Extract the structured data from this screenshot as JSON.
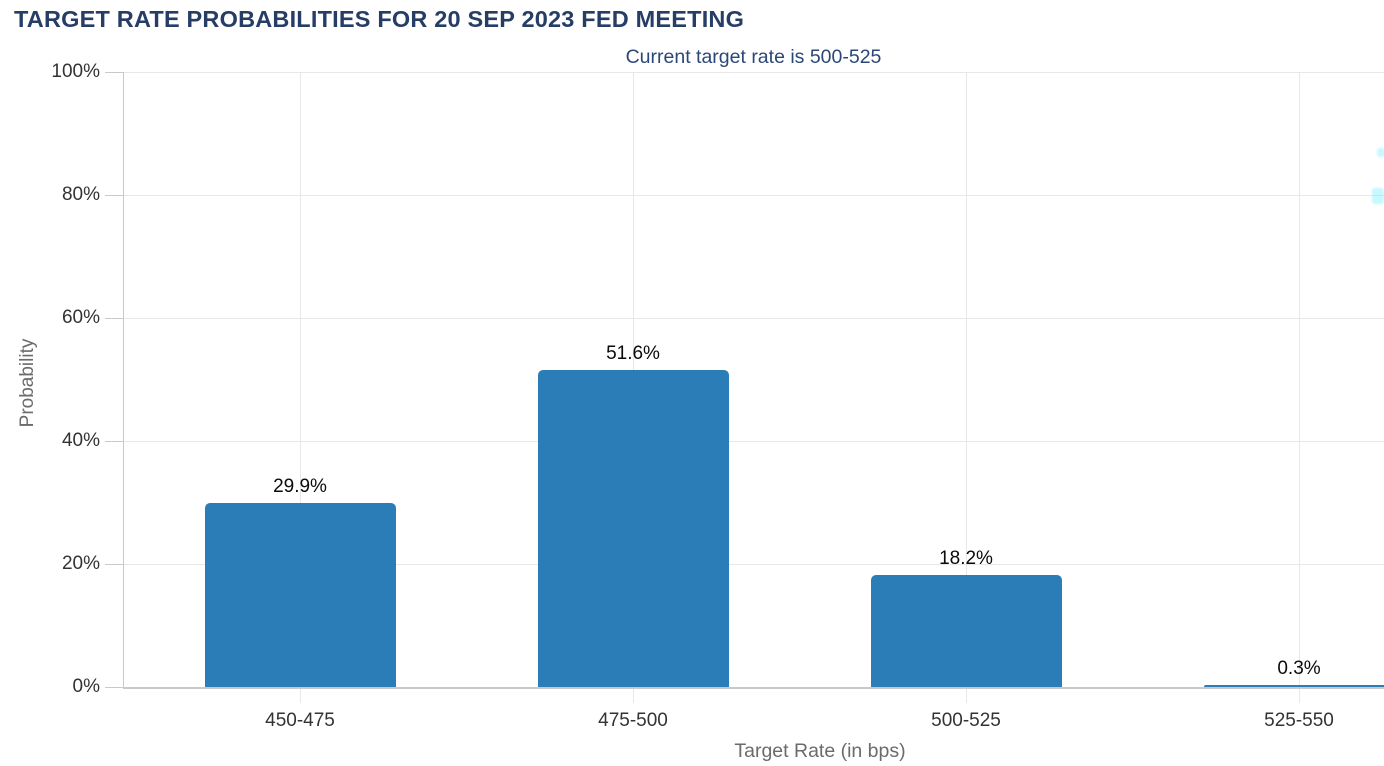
{
  "chart_data": {
    "type": "bar",
    "title": "TARGET RATE PROBABILITIES FOR 20 SEP 2023 FED MEETING",
    "subtitle": "Current target rate is 500-525",
    "xlabel": "Target Rate (in bps)",
    "ylabel": "Probability",
    "categories": [
      "450-475",
      "475-500",
      "500-525",
      "525-550"
    ],
    "values": [
      29.9,
      51.6,
      18.2,
      0.3
    ],
    "value_labels": [
      "29.9%",
      "51.6%",
      "18.2%",
      "0.3%"
    ],
    "yticks": [
      "0%",
      "20%",
      "40%",
      "60%",
      "80%",
      "100%"
    ],
    "ytick_values": [
      0,
      20,
      40,
      60,
      80,
      100
    ],
    "ylim": [
      0,
      100
    ],
    "grid": true,
    "legend": "none",
    "colors": {
      "bar": "#2b7db7",
      "title": "#263d66",
      "subtitle": "#2b4778",
      "grid": "#e8e8e8",
      "axis": "#c9c9c9",
      "tick_label": "#333333",
      "axis_title": "#6b6b6b",
      "value_label": "#0a0a0a",
      "background": "#ffffff",
      "edge_artifact": "#7ff0ff"
    }
  }
}
